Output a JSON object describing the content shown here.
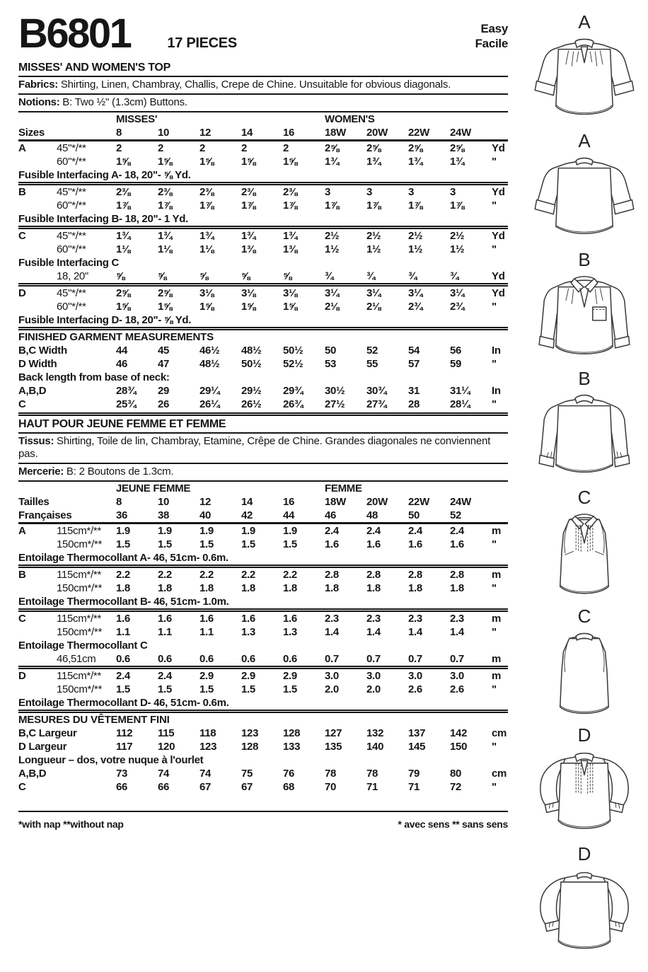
{
  "header": {
    "pattern_number": "B6801",
    "pieces": "17 PIECES",
    "difficulty_en": "Easy",
    "difficulty_fr": "Facile"
  },
  "english": {
    "title": "MISSES' AND WOMEN'S TOP",
    "fabrics_label": "Fabrics:",
    "fabrics_text": "Shirting, Linen, Chambray, Challis, Crepe de Chine. Unsuitable for obvious diagonals.",
    "notions_label": "Notions:",
    "notions_text": "B: Two ½\" (1.3cm) Buttons.",
    "rows": [
      {
        "type": "group",
        "left": "MISSES'",
        "right": "WOMEN'S"
      },
      {
        "type": "sizes",
        "label": "Sizes",
        "values": [
          "8",
          "10",
          "12",
          "14",
          "16",
          "18W",
          "20W",
          "22W",
          "24W"
        ],
        "unit": ""
      },
      {
        "type": "values",
        "label": "A",
        "sub": "45\"*/**",
        "values": [
          "2",
          "2",
          "2",
          "2",
          "2",
          "2⅝",
          "2⅝",
          "2⅝",
          "2⅝"
        ],
        "unit": "Yd",
        "rule": "thick"
      },
      {
        "type": "values",
        "label": "",
        "sub": "60\"*/**",
        "values": [
          "1⅝",
          "1⅝",
          "1⅝",
          "1⅝",
          "1⅝",
          "1¾",
          "1¾",
          "1¾",
          "1¾"
        ],
        "unit": "\""
      },
      {
        "type": "note",
        "text": "Fusible Interfacing A- 18, 20\"- ⅝ Yd."
      },
      {
        "type": "values",
        "label": "B",
        "sub": "45\"*/**",
        "values": [
          "2⅜",
          "2⅜",
          "2⅜",
          "2⅜",
          "2⅜",
          "3",
          "3",
          "3",
          "3"
        ],
        "unit": "Yd",
        "rule": "double"
      },
      {
        "type": "values",
        "label": "",
        "sub": "60\"*/**",
        "values": [
          "1⅞",
          "1⅞",
          "1⅞",
          "1⅞",
          "1⅞",
          "1⅞",
          "1⅞",
          "1⅞",
          "1⅞"
        ],
        "unit": "\""
      },
      {
        "type": "note",
        "text": "Fusible Interfacing B- 18, 20\"- 1 Yd."
      },
      {
        "type": "values",
        "label": "C",
        "sub": "45\"*/**",
        "values": [
          "1¾",
          "1¾",
          "1¾",
          "1¾",
          "1¾",
          "2½",
          "2½",
          "2½",
          "2½"
        ],
        "unit": "Yd",
        "rule": "double"
      },
      {
        "type": "values",
        "label": "",
        "sub": "60\"*/**",
        "values": [
          "1⅛",
          "1⅛",
          "1⅛",
          "1⅜",
          "1⅜",
          "1½",
          "1½",
          "1½",
          "1½"
        ],
        "unit": "\""
      },
      {
        "type": "note",
        "text": "Fusible Interfacing C"
      },
      {
        "type": "values",
        "label": "",
        "sub": "18, 20\"",
        "values": [
          "⅝",
          "⅝",
          "⅝",
          "⅝",
          "⅝",
          "¾",
          "¾",
          "¾",
          "¾"
        ],
        "unit": "Yd"
      },
      {
        "type": "values",
        "label": "D",
        "sub": "45\"*/**",
        "values": [
          "2⅝",
          "2⅝",
          "3⅛",
          "3⅛",
          "3⅛",
          "3¼",
          "3¼",
          "3¼",
          "3¼"
        ],
        "unit": "Yd",
        "rule": "double"
      },
      {
        "type": "values",
        "label": "",
        "sub": "60\"*/**",
        "values": [
          "1⅝",
          "1⅝",
          "1⅝",
          "1⅝",
          "1⅝",
          "2⅛",
          "2⅛",
          "2¾",
          "2¾"
        ],
        "unit": "\""
      },
      {
        "type": "note",
        "text": "Fusible Interfacing D- 18, 20\"- ⅝ Yd."
      },
      {
        "type": "section",
        "text": "FINISHED GARMENT MEASUREMENTS",
        "rule": "double"
      },
      {
        "type": "values",
        "label": "B,C Width",
        "values": [
          "44",
          "45",
          "46½",
          "48½",
          "50½",
          "50",
          "52",
          "54",
          "56"
        ],
        "unit": "In"
      },
      {
        "type": "values",
        "label": "D Width",
        "values": [
          "46",
          "47",
          "48½",
          "50½",
          "52½",
          "53",
          "55",
          "57",
          "59"
        ],
        "unit": "\""
      },
      {
        "type": "subheader",
        "text": "Back length from base of neck:"
      },
      {
        "type": "values",
        "label": "A,B,D",
        "values": [
          "28¾",
          "29",
          "29¼",
          "29½",
          "29¾",
          "30½",
          "30¾",
          "31",
          "31¼"
        ],
        "unit": "In"
      },
      {
        "type": "values",
        "label": "C",
        "values": [
          "25¾",
          "26",
          "26¼",
          "26½",
          "26¾",
          "27½",
          "27¾",
          "28",
          "28¼"
        ],
        "unit": "\""
      }
    ]
  },
  "french": {
    "title": "HAUT POUR JEUNE FEMME ET FEMME",
    "tissus_label": "Tissus:",
    "tissus_text": "Shirting, Toile de lin, Chambray, Etamine, Crêpe de Chine. Grandes diagonales ne conviennent pas.",
    "mercerie_label": "Mercerie:",
    "mercerie_text": "B: 2 Boutons de 1.3cm.",
    "rows": [
      {
        "type": "group",
        "left": "JEUNE FEMME",
        "right": "FEMME"
      },
      {
        "type": "sizes",
        "label": "Tailles",
        "values": [
          "8",
          "10",
          "12",
          "14",
          "16",
          "18W",
          "20W",
          "22W",
          "24W"
        ],
        "unit": ""
      },
      {
        "type": "sizes",
        "label": "Françaises",
        "values": [
          "36",
          "38",
          "40",
          "42",
          "44",
          "46",
          "48",
          "50",
          "52"
        ],
        "unit": ""
      },
      {
        "type": "values",
        "label": "A",
        "sub": "115cm*/**",
        "values": [
          "1.9",
          "1.9",
          "1.9",
          "1.9",
          "1.9",
          "2.4",
          "2.4",
          "2.4",
          "2.4"
        ],
        "unit": "m",
        "rule": "thick"
      },
      {
        "type": "values",
        "label": "",
        "sub": "150cm*/**",
        "values": [
          "1.5",
          "1.5",
          "1.5",
          "1.5",
          "1.5",
          "1.6",
          "1.6",
          "1.6",
          "1.6"
        ],
        "unit": "\""
      },
      {
        "type": "note",
        "text": "Entoilage Thermocollant A- 46, 51cm- 0.6m."
      },
      {
        "type": "values",
        "label": "B",
        "sub": "115cm*/**",
        "values": [
          "2.2",
          "2.2",
          "2.2",
          "2.2",
          "2.2",
          "2.8",
          "2.8",
          "2.8",
          "2.8"
        ],
        "unit": "m",
        "rule": "double"
      },
      {
        "type": "values",
        "label": "",
        "sub": "150cm*/**",
        "values": [
          "1.8",
          "1.8",
          "1.8",
          "1.8",
          "1.8",
          "1.8",
          "1.8",
          "1.8",
          "1.8"
        ],
        "unit": "\""
      },
      {
        "type": "note",
        "text": "Entoilage Thermocollant B- 46, 51cm- 1.0m."
      },
      {
        "type": "values",
        "label": "C",
        "sub": "115cm*/**",
        "values": [
          "1.6",
          "1.6",
          "1.6",
          "1.6",
          "1.6",
          "2.3",
          "2.3",
          "2.3",
          "2.3"
        ],
        "unit": "m",
        "rule": "double"
      },
      {
        "type": "values",
        "label": "",
        "sub": "150cm*/**",
        "values": [
          "1.1",
          "1.1",
          "1.1",
          "1.3",
          "1.3",
          "1.4",
          "1.4",
          "1.4",
          "1.4"
        ],
        "unit": "\""
      },
      {
        "type": "note",
        "text": "Entoilage Thermocollant C"
      },
      {
        "type": "values",
        "label": "",
        "sub": "46,51cm",
        "values": [
          "0.6",
          "0.6",
          "0.6",
          "0.6",
          "0.6",
          "0.7",
          "0.7",
          "0.7",
          "0.7"
        ],
        "unit": "m"
      },
      {
        "type": "values",
        "label": "D",
        "sub": "115cm*/**",
        "values": [
          "2.4",
          "2.4",
          "2.9",
          "2.9",
          "2.9",
          "3.0",
          "3.0",
          "3.0",
          "3.0"
        ],
        "unit": "m",
        "rule": "double"
      },
      {
        "type": "values",
        "label": "",
        "sub": "150cm*/**",
        "values": [
          "1.5",
          "1.5",
          "1.5",
          "1.5",
          "1.5",
          "2.0",
          "2.0",
          "2.6",
          "2.6"
        ],
        "unit": "\""
      },
      {
        "type": "note",
        "text": "Entoilage Thermocollant D- 46, 51cm- 0.6m."
      },
      {
        "type": "section",
        "text": "MESURES DU VÊTEMENT FINI",
        "rule": "double"
      },
      {
        "type": "values",
        "label": "B,C Largeur",
        "values": [
          "112",
          "115",
          "118",
          "123",
          "128",
          "127",
          "132",
          "137",
          "142"
        ],
        "unit": "cm"
      },
      {
        "type": "values",
        "label": "D Largeur",
        "values": [
          "117",
          "120",
          "123",
          "128",
          "133",
          "135",
          "140",
          "145",
          "150"
        ],
        "unit": "\""
      },
      {
        "type": "subheader",
        "text": "Longueur – dos, votre nuque à l'ourlet"
      },
      {
        "type": "values",
        "label": "A,B,D",
        "values": [
          "73",
          "74",
          "74",
          "75",
          "76",
          "78",
          "78",
          "79",
          "80"
        ],
        "unit": "cm"
      },
      {
        "type": "values",
        "label": "C",
        "values": [
          "66",
          "66",
          "67",
          "67",
          "68",
          "70",
          "71",
          "71",
          "72"
        ],
        "unit": "\""
      }
    ]
  },
  "footnotes": {
    "en": "*with nap   **without nap",
    "fr": "* avec sens   ** sans sens"
  },
  "views": {
    "labels": [
      "A",
      "A",
      "B",
      "B",
      "C",
      "C",
      "D",
      "D"
    ]
  }
}
